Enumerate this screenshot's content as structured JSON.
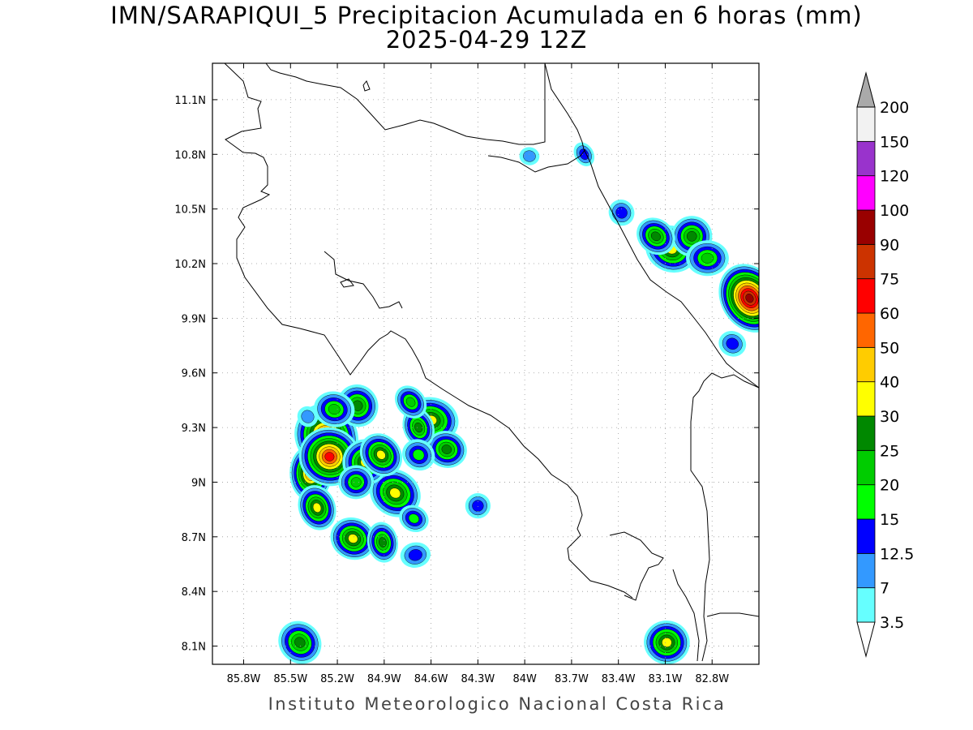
{
  "title_line1": "IMN/SARAPIQUI_5 Precipitacion Acumulada en 6 horas (mm)",
  "title_line2": "2025-04-29 12Z",
  "credit": "Instituto Meteorologico Nacional Costa Rica",
  "map": {
    "lon_range": [
      -86.0,
      -82.5
    ],
    "lat_range": [
      8.0,
      11.3
    ],
    "x_ticks": [
      {
        "lon": -85.8,
        "label": "85.8W"
      },
      {
        "lon": -85.5,
        "label": "85.5W"
      },
      {
        "lon": -85.2,
        "label": "85.2W"
      },
      {
        "lon": -84.9,
        "label": "84.9W"
      },
      {
        "lon": -84.6,
        "label": "84.6W"
      },
      {
        "lon": -84.3,
        "label": "84.3W"
      },
      {
        "lon": -84.0,
        "label": "84W"
      },
      {
        "lon": -83.7,
        "label": "83.7W"
      },
      {
        "lon": -83.4,
        "label": "83.4W"
      },
      {
        "lon": -83.1,
        "label": "83.1W"
      },
      {
        "lon": -82.8,
        "label": "82.8W"
      }
    ],
    "y_ticks": [
      {
        "lat": 11.1,
        "label": "11.1N"
      },
      {
        "lat": 10.8,
        "label": "10.8N"
      },
      {
        "lat": 10.5,
        "label": "10.5N"
      },
      {
        "lat": 10.2,
        "label": "10.2N"
      },
      {
        "lat": 9.9,
        "label": "9.9N"
      },
      {
        "lat": 9.6,
        "label": "9.6N"
      },
      {
        "lat": 9.3,
        "label": "9.3N"
      },
      {
        "lat": 9.0,
        "label": "9N"
      },
      {
        "lat": 8.7,
        "label": "8.7N"
      },
      {
        "lat": 8.4,
        "label": "8.4N"
      },
      {
        "lat": 8.1,
        "label": "8.1N"
      }
    ],
    "grid": true
  },
  "colorbar": {
    "levels": [
      {
        "label": "3.5",
        "color": "#66ffff"
      },
      {
        "label": "7",
        "color": "#3399ff"
      },
      {
        "label": "12.5",
        "color": "#0000ff"
      },
      {
        "label": "15",
        "color": "#00ff00"
      },
      {
        "label": "20",
        "color": "#00cc00"
      },
      {
        "label": "25",
        "color": "#008800"
      },
      {
        "label": "30",
        "color": "#ffff00"
      },
      {
        "label": "40",
        "color": "#ffcc00"
      },
      {
        "label": "50",
        "color": "#ff6600"
      },
      {
        "label": "60",
        "color": "#ff0000"
      },
      {
        "label": "75",
        "color": "#cc3300"
      },
      {
        "label": "90",
        "color": "#990000"
      },
      {
        "label": "100",
        "color": "#ff00ff"
      },
      {
        "label": "120",
        "color": "#9933cc"
      },
      {
        "label": "150",
        "color": "#f2f2f2"
      },
      {
        "label": "200",
        "color": "#aaaaaa"
      }
    ]
  },
  "precip_cells": [
    {
      "lon": -85.37,
      "lat": 9.05,
      "max_mm": 55
    },
    {
      "lon": -85.27,
      "lat": 9.25,
      "max_mm": 60
    },
    {
      "lon": -85.25,
      "lat": 9.14,
      "max_mm": 60
    },
    {
      "lon": -85.33,
      "lat": 8.86,
      "max_mm": 30
    },
    {
      "lon": -84.83,
      "lat": 8.94,
      "max_mm": 30
    },
    {
      "lon": -85.02,
      "lat": 9.11,
      "max_mm": 30
    },
    {
      "lon": -84.92,
      "lat": 9.15,
      "max_mm": 30
    },
    {
      "lon": -84.6,
      "lat": 9.34,
      "max_mm": 30
    },
    {
      "lon": -85.07,
      "lat": 9.42,
      "max_mm": 25
    },
    {
      "lon": -85.1,
      "lat": 8.69,
      "max_mm": 30
    },
    {
      "lon": -84.91,
      "lat": 8.67,
      "max_mm": 25
    },
    {
      "lon": -85.44,
      "lat": 8.12,
      "max_mm": 25
    },
    {
      "lon": -83.09,
      "lat": 8.12,
      "max_mm": 30
    },
    {
      "lon": -82.56,
      "lat": 10.01,
      "max_mm": 90
    },
    {
      "lon": -83.06,
      "lat": 10.28,
      "max_mm": 30
    },
    {
      "lon": -82.93,
      "lat": 10.35,
      "max_mm": 25
    },
    {
      "lon": -83.16,
      "lat": 10.35,
      "max_mm": 25
    },
    {
      "lon": -82.83,
      "lat": 10.23,
      "max_mm": 20
    },
    {
      "lon": -83.38,
      "lat": 10.48,
      "max_mm": 12.5
    },
    {
      "lon": -84.5,
      "lat": 9.18,
      "max_mm": 25
    },
    {
      "lon": -84.68,
      "lat": 9.3,
      "max_mm": 25
    },
    {
      "lon": -84.68,
      "lat": 9.15,
      "max_mm": 15
    },
    {
      "lon": -85.08,
      "lat": 9.0,
      "max_mm": 20
    },
    {
      "lon": -84.73,
      "lat": 9.44,
      "max_mm": 20
    },
    {
      "lon": -85.22,
      "lat": 9.4,
      "max_mm": 20
    },
    {
      "lon": -84.3,
      "lat": 8.87,
      "max_mm": 12.5
    },
    {
      "lon": -84.71,
      "lat": 8.8,
      "max_mm": 15
    },
    {
      "lon": -84.7,
      "lat": 8.6,
      "max_mm": 12.5
    },
    {
      "lon": -85.39,
      "lat": 9.36,
      "max_mm": 7
    },
    {
      "lon": -83.97,
      "lat": 10.79,
      "max_mm": 7
    },
    {
      "lon": -83.62,
      "lat": 10.8,
      "max_mm": 12.5
    },
    {
      "lon": -82.67,
      "lat": 9.76,
      "max_mm": 12.5
    }
  ]
}
